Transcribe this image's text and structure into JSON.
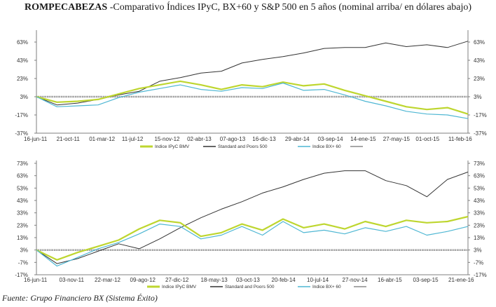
{
  "title_bold": "ROMPECABEZAS",
  "title_rest": " -Comparativo Índices IPyC, BX+60 y S&P 500 en 5 años (nominal arriba/ en dólares abajo)",
  "source": "Fuente: Grupo Financiero BX (Sistema Éxito)",
  "colors": {
    "ipyc": "#bed62f",
    "sp500": "#333333",
    "bx60": "#4fb7d3",
    "flat": "#8c8c8c",
    "axis": "#7f7f7f"
  },
  "chart_data": [
    {
      "type": "line",
      "title": "",
      "xlabel": "",
      "ylabel": "",
      "ylim": [
        -37,
        73
      ],
      "y_ticks": [
        "-37%",
        "-17%",
        "3%",
        "23%",
        "43%",
        "63%"
      ],
      "y_tick_values": [
        -37,
        -17,
        3,
        23,
        43,
        63
      ],
      "x_tick_labels": [
        "16-jun-11",
        "21-oct-11",
        "01-mar-12",
        "11-jul-12",
        "15-nov-12",
        "02-abr-13",
        "07-ago-13",
        "16-dic-13",
        "29-abr-14",
        "03-sep-14",
        "14-ene-15",
        "27-may-15",
        "01-oct-15",
        "11-feb-16"
      ],
      "legend_position": "bottom",
      "series": [
        {
          "name": "Indice IPyC BMV",
          "color_key": "ipyc",
          "values": [
            3,
            -3,
            -2,
            0,
            6,
            12,
            16,
            20,
            16,
            11,
            16,
            14,
            19,
            15,
            17,
            10,
            4,
            -2,
            -8,
            -11,
            -9,
            -16
          ]
        },
        {
          "name": "Standard and Poors 500",
          "color_key": "sp500",
          "values": [
            3,
            -6,
            -4,
            0,
            5,
            9,
            20,
            24,
            29,
            31,
            40,
            44,
            47,
            51,
            56,
            57,
            57,
            62,
            58,
            60,
            57,
            64
          ]
        },
        {
          "name": "Indice BX+ 60",
          "color_key": "bx60",
          "values": [
            3,
            -8,
            -7,
            -6,
            2,
            8,
            12,
            16,
            11,
            9,
            13,
            12,
            18,
            10,
            11,
            5,
            -2,
            -7,
            -13,
            -16,
            -17,
            -21
          ]
        },
        {
          "name": "",
          "color_key": "flat",
          "values": [
            3,
            3,
            3,
            3,
            3,
            3,
            3,
            3,
            3,
            3,
            3,
            3,
            3,
            3,
            3,
            3,
            3,
            3,
            3,
            3,
            3,
            3
          ]
        }
      ]
    },
    {
      "type": "line",
      "title": "",
      "xlabel": "",
      "ylabel": "",
      "ylim": [
        -17,
        73
      ],
      "y_ticks": [
        "-17%",
        "-7%",
        "3%",
        "13%",
        "23%",
        "33%",
        "43%",
        "53%",
        "63%",
        "73%"
      ],
      "y_tick_values": [
        -17,
        -7,
        3,
        13,
        23,
        33,
        43,
        53,
        63,
        73
      ],
      "x_tick_labels": [
        "16-jun-11",
        "03-nov-11",
        "22-mar-12",
        "09-ago-12",
        "27-dic-12",
        "18-may-13",
        "03-oct-13",
        "20-feb-14",
        "10-jul-14",
        "27-nov-14",
        "16-abr-15",
        "03-sep-15",
        "21-ene-16"
      ],
      "legend_position": "bottom",
      "series": [
        {
          "name": "Indice IPyC BMV",
          "color_key": "ipyc",
          "values": [
            3,
            -5,
            1,
            6,
            11,
            20,
            27,
            25,
            14,
            17,
            24,
            19,
            28,
            21,
            24,
            20,
            26,
            22,
            27,
            25,
            26,
            30
          ]
        },
        {
          "name": "Standard and Poors 500",
          "color_key": "sp500",
          "values": [
            3,
            -8,
            -4,
            2,
            8,
            4,
            12,
            21,
            29,
            36,
            42,
            49,
            54,
            60,
            65,
            67,
            67,
            59,
            55,
            46,
            60,
            66
          ]
        },
        {
          "name": "Indice BX+ 60",
          "color_key": "bx60",
          "values": [
            3,
            -10,
            -3,
            4,
            9,
            16,
            24,
            22,
            12,
            15,
            22,
            15,
            26,
            17,
            19,
            16,
            21,
            18,
            22,
            15,
            18,
            22
          ]
        },
        {
          "name": "",
          "color_key": "flat",
          "values": [
            3,
            3,
            3,
            3,
            3,
            3,
            3,
            3,
            3,
            3,
            3,
            3,
            3,
            3,
            3,
            3,
            3,
            3,
            3,
            3,
            3,
            3
          ]
        }
      ]
    }
  ]
}
